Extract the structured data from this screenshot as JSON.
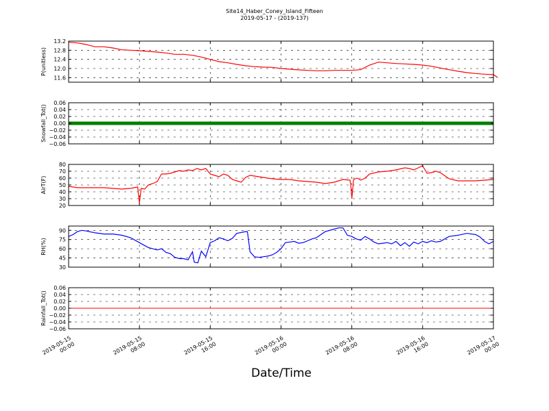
{
  "figure": {
    "title_line1": "Site14_Haber_Coney_Island_Fifteen",
    "title_line2": "2019-05-17 - (2019-137)",
    "xlabel": "Date/Time"
  },
  "colors": {
    "red": "#ff0000",
    "green": "#008000",
    "blue": "#0000ff",
    "axis": "#000000",
    "background": "#ffffff"
  },
  "chart_data": [
    {
      "type": "line",
      "ylabel": "P(unitless)",
      "ylim": [
        11.4,
        13.2
      ],
      "yticks": [
        "13.2",
        "12.8",
        "12.4",
        "12.0",
        "11.6"
      ],
      "ytick_values": [
        13.2,
        12.8,
        12.4,
        12.0,
        11.6
      ],
      "grid": true,
      "series": [
        {
          "color": "#ff0000",
          "marker": "none",
          "x": [
            0,
            1,
            2,
            3,
            4,
            5,
            6,
            7,
            8,
            9,
            10,
            11,
            12,
            13,
            14,
            15,
            16,
            17,
            18,
            19,
            20,
            21,
            22,
            23,
            24,
            25,
            26,
            27,
            28,
            29,
            30,
            31,
            32,
            33,
            34,
            35,
            36,
            37,
            38,
            39,
            40,
            41,
            42,
            43,
            44,
            45,
            46,
            47,
            48
          ],
          "y": [
            13.15,
            13.12,
            13.05,
            12.95,
            12.95,
            12.9,
            12.82,
            12.8,
            12.78,
            12.75,
            12.72,
            12.68,
            12.62,
            12.62,
            12.58,
            12.5,
            12.4,
            12.3,
            12.25,
            12.18,
            12.12,
            12.08,
            12.06,
            12.05,
            12.0,
            11.97,
            11.94,
            11.92,
            11.9,
            11.9,
            11.92,
            11.92,
            11.92,
            11.95,
            12.15,
            12.28,
            12.25,
            12.22,
            12.2,
            12.18,
            12.15,
            12.1,
            12.02,
            11.95,
            11.88,
            11.82,
            11.78,
            11.75,
            11.73
          ]
        }
      ],
      "x_extra": [
        48.5
      ],
      "y_extra": [
        11.6
      ]
    },
    {
      "type": "scatter",
      "ylabel": "Snowfall_Tot()",
      "ylim": [
        -0.06,
        0.06
      ],
      "yticks": [
        "0.06",
        "0.04",
        "0.02",
        "0.00",
        "−0.02",
        "−0.04",
        "−0.06"
      ],
      "ytick_values": [
        0.06,
        0.04,
        0.02,
        0.0,
        -0.02,
        -0.04,
        -0.06
      ],
      "grid": true,
      "series": [
        {
          "color": "#008000",
          "marker": "dense",
          "value": 0.0
        }
      ]
    },
    {
      "type": "line",
      "ylabel": "AirT(F)",
      "ylim": [
        20,
        80
      ],
      "yticks": [
        "80",
        "70",
        "60",
        "50",
        "40",
        "30",
        "20"
      ],
      "ytick_values": [
        80,
        70,
        60,
        50,
        40,
        30,
        20
      ],
      "grid": true,
      "series": [
        {
          "color": "#ff0000",
          "marker": "none",
          "x": [
            0,
            1,
            2,
            3,
            4,
            5,
            6,
            7,
            7.8,
            7.9,
            8.0,
            8.2,
            8.6,
            9,
            9.5,
            10,
            10.5,
            11,
            11.5,
            12,
            12.5,
            13,
            13.5,
            14,
            14.5,
            15,
            15.5,
            16,
            16.5,
            17,
            17.5,
            18,
            18.5,
            19,
            19.5,
            20,
            20.5,
            21,
            22,
            23,
            24,
            25,
            26,
            27,
            28,
            29,
            30,
            31,
            31.8,
            31.9,
            32.0,
            32.2,
            32.6,
            33,
            33.5,
            34,
            35,
            36,
            37,
            38,
            38.5,
            39,
            39.5,
            40,
            40.5,
            41,
            41.5,
            42,
            43,
            44,
            45,
            46,
            47,
            48
          ],
          "y": [
            48,
            46,
            46,
            46,
            46,
            45,
            44,
            45,
            47,
            35,
            24,
            45,
            44,
            50,
            52,
            55,
            66,
            66,
            67,
            69,
            71,
            70,
            72,
            71,
            74,
            72,
            74,
            66,
            64,
            62,
            66,
            64,
            58,
            56,
            54,
            61,
            64,
            63,
            61,
            59,
            58,
            58,
            56,
            55,
            54,
            52,
            54,
            58,
            57,
            47,
            30,
            58,
            60,
            57,
            60,
            66,
            69,
            70,
            72,
            75,
            74,
            72,
            75,
            78,
            67,
            68,
            70,
            68,
            59,
            56,
            56,
            56,
            57,
            58
          ]
        }
      ]
    },
    {
      "type": "line",
      "ylabel": "RH(%)",
      "ylim": [
        30,
        97
      ],
      "yticks": [
        "90",
        "75",
        "60",
        "45",
        "30"
      ],
      "ytick_values": [
        90,
        75,
        60,
        45,
        30
      ],
      "grid": true,
      "series": [
        {
          "color": "#0000ff",
          "marker": "none",
          "x": [
            0,
            0.5,
            1,
            1.5,
            2,
            3,
            4,
            5,
            6,
            7,
            8,
            8.5,
            9,
            9.5,
            10,
            10.5,
            11,
            11.5,
            12,
            12.5,
            13,
            13.5,
            14,
            14.2,
            14.6,
            15,
            15.5,
            16,
            16.5,
            17,
            17.5,
            18,
            18.5,
            19,
            20,
            20.2,
            20.5,
            21,
            21.5,
            22,
            22.5,
            23,
            23.5,
            24,
            24.5,
            25,
            25.5,
            26,
            26.5,
            27,
            27.5,
            28,
            29,
            30,
            30.5,
            31,
            31.5,
            32,
            32.5,
            33,
            33.5,
            34,
            34.5,
            35,
            35.5,
            36,
            36.5,
            37,
            37.5,
            38,
            38.5,
            39,
            39.5,
            40,
            40.5,
            41,
            41.5,
            42,
            43,
            44,
            45,
            46,
            46.5,
            47,
            47.5,
            48
          ],
          "y": [
            80,
            83,
            88,
            90,
            89,
            86,
            84,
            84,
            82,
            78,
            70,
            66,
            62,
            60,
            58,
            60,
            54,
            52,
            46,
            44,
            44,
            42,
            55,
            38,
            37,
            56,
            47,
            70,
            73,
            78,
            76,
            73,
            77,
            85,
            88,
            88,
            55,
            47,
            46,
            47,
            48,
            50,
            54,
            60,
            70,
            71,
            72,
            69,
            70,
            73,
            76,
            78,
            88,
            92,
            94,
            94,
            82,
            80,
            76,
            74,
            80,
            76,
            71,
            68,
            69,
            70,
            68,
            72,
            65,
            70,
            64,
            71,
            68,
            72,
            70,
            73,
            71,
            72,
            80,
            82,
            85,
            83,
            79,
            72,
            68,
            72
          ]
        }
      ]
    },
    {
      "type": "line",
      "ylabel": "Rainfall_Tot()",
      "ylim": [
        -0.06,
        0.06
      ],
      "yticks": [
        "0.06",
        "0.04",
        "0.02",
        "0.00",
        "−0.02",
        "−0.04",
        "−0.06"
      ],
      "ytick_values": [
        0.06,
        0.04,
        0.02,
        0.0,
        -0.02,
        -0.04,
        -0.06
      ],
      "grid": true,
      "series": [
        {
          "color": "#ff0000",
          "marker": "none",
          "value": 0.0
        }
      ]
    }
  ],
  "x_axis": {
    "range_hours": [
      0,
      48
    ],
    "ticks": [
      {
        "hours": 0,
        "line1": "2019-05-15",
        "line2": "00:00"
      },
      {
        "hours": 8,
        "line1": "2019-05-15",
        "line2": "08:00"
      },
      {
        "hours": 16,
        "line1": "2019-05-15",
        "line2": "16:00"
      },
      {
        "hours": 24,
        "line1": "2019-05-16",
        "line2": "00:00"
      },
      {
        "hours": 32,
        "line1": "2019-05-16",
        "line2": "08:00"
      },
      {
        "hours": 40,
        "line1": "2019-05-16",
        "line2": "16:00"
      },
      {
        "hours": 48,
        "line1": "2019-05-17",
        "line2": "00:00"
      }
    ]
  }
}
